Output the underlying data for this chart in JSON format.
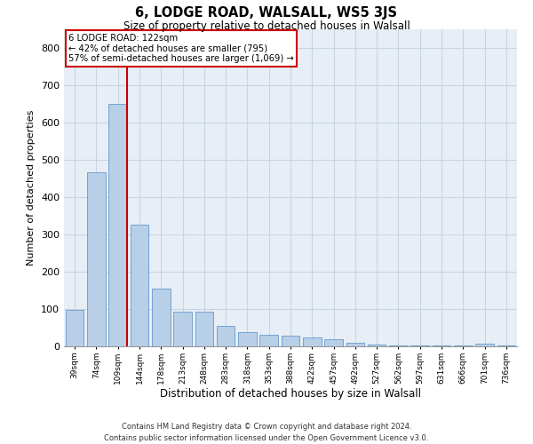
{
  "title1": "6, LODGE ROAD, WALSALL, WS5 3JS",
  "title2": "Size of property relative to detached houses in Walsall",
  "xlabel": "Distribution of detached houses by size in Walsall",
  "ylabel": "Number of detached properties",
  "categories": [
    "39sqm",
    "74sqm",
    "109sqm",
    "144sqm",
    "178sqm",
    "213sqm",
    "248sqm",
    "283sqm",
    "318sqm",
    "353sqm",
    "388sqm",
    "422sqm",
    "457sqm",
    "492sqm",
    "527sqm",
    "562sqm",
    "597sqm",
    "631sqm",
    "666sqm",
    "701sqm",
    "736sqm"
  ],
  "values": [
    97,
    466,
    648,
    325,
    155,
    93,
    93,
    55,
    38,
    30,
    28,
    23,
    20,
    10,
    5,
    3,
    3,
    2,
    2,
    8,
    2
  ],
  "bar_color": "#b8cfe8",
  "bar_edge_color": "#6699cc",
  "property_line_label": "6 LODGE ROAD: 122sqm",
  "annotation_line1": "← 42% of detached houses are smaller (795)",
  "annotation_line2": "57% of semi-detached houses are larger (1,069) →",
  "annotation_box_facecolor": "#ffffff",
  "annotation_box_edgecolor": "#cc0000",
  "red_line_color": "#cc0000",
  "ylim": [
    0,
    850
  ],
  "yticks": [
    0,
    100,
    200,
    300,
    400,
    500,
    600,
    700,
    800
  ],
  "grid_color": "#c8d4e4",
  "background_color": "#e8eef6",
  "footer1": "Contains HM Land Registry data © Crown copyright and database right 2024.",
  "footer2": "Contains public sector information licensed under the Open Government Licence v3.0."
}
